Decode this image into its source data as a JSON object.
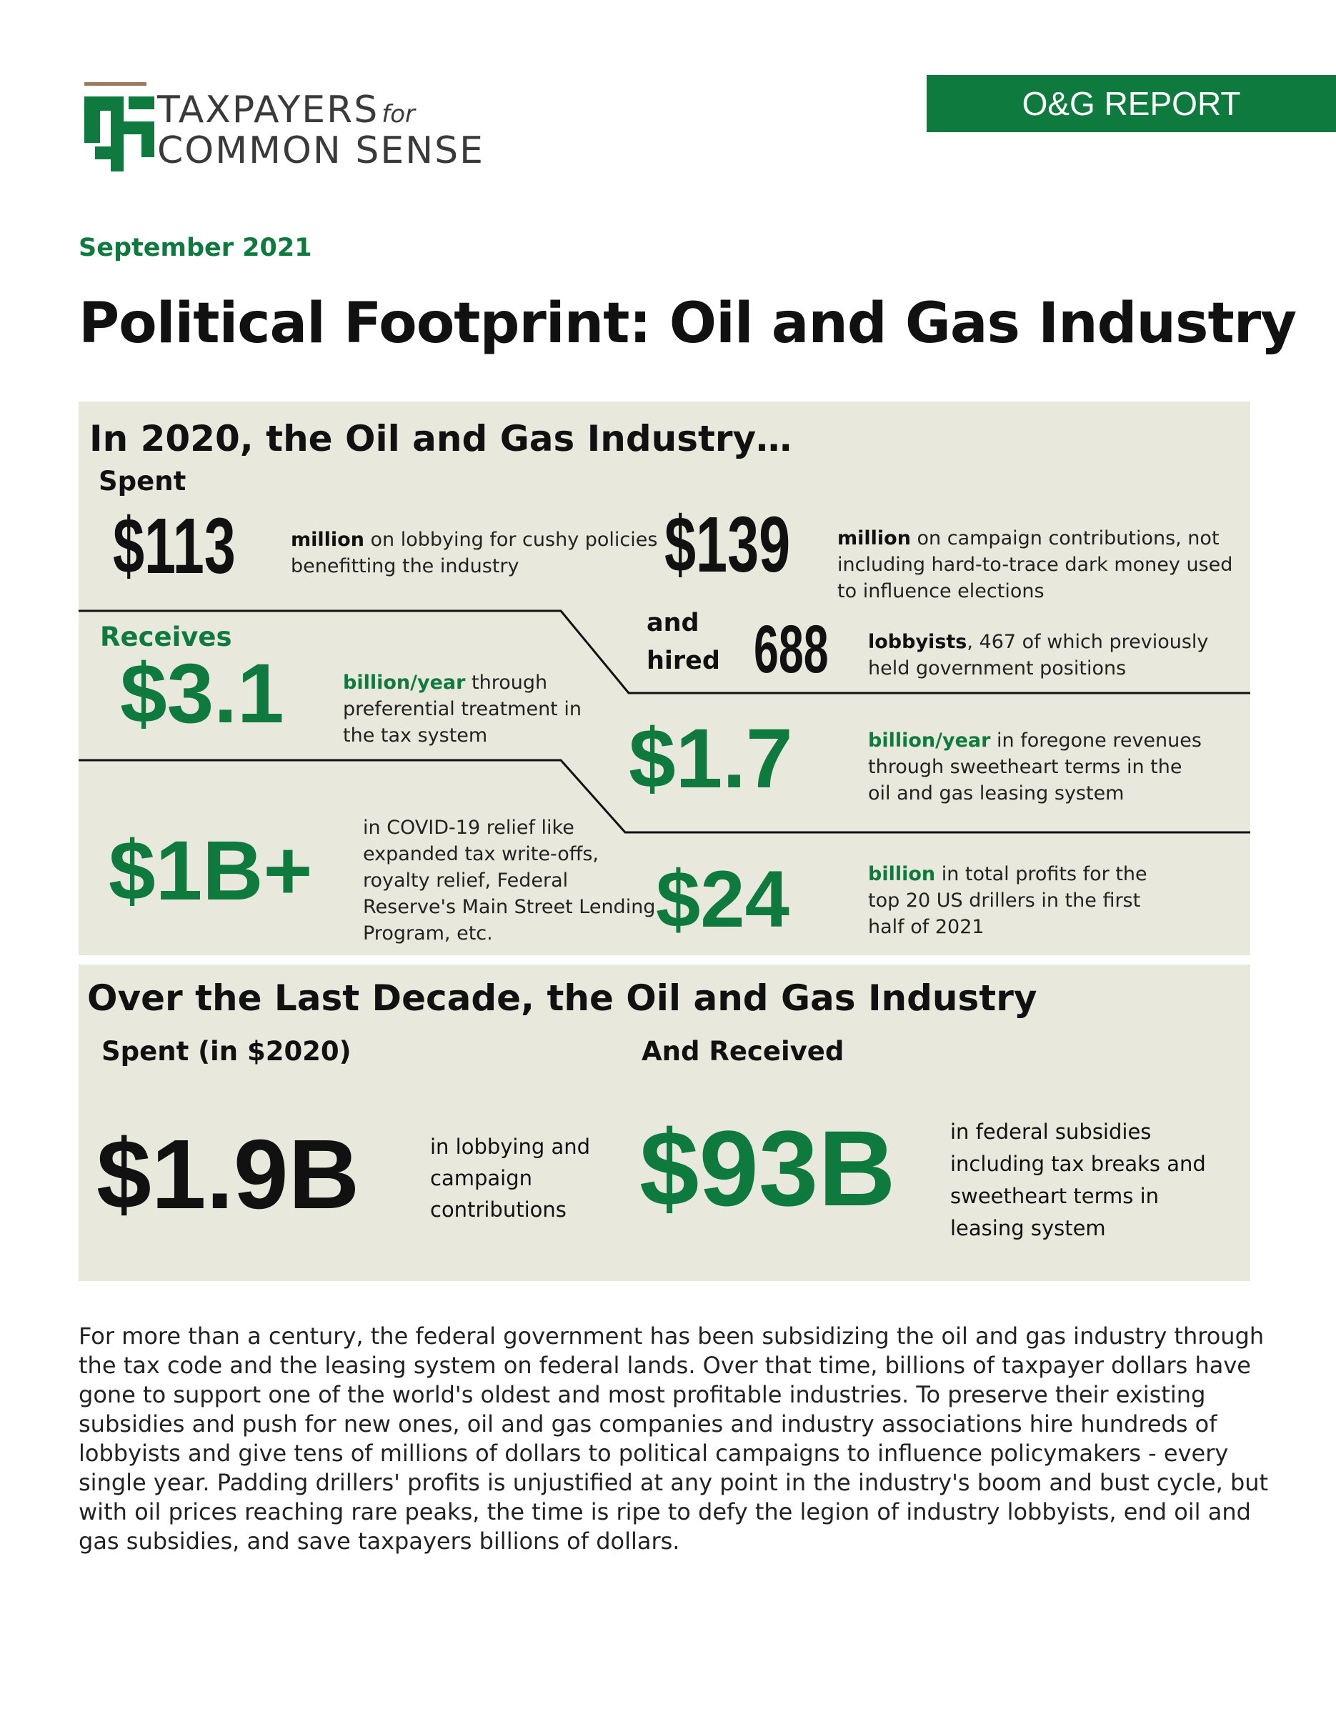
{
  "header": {
    "logo_line1": "TAXPAYERS",
    "logo_for": "for",
    "logo_line2": "COMMON SENSE",
    "badge": "O&G REPORT",
    "date": "September 2021",
    "title": "Political Footprint: Oil and Gas Industry"
  },
  "section2020": {
    "heading": "In 2020, the Oil and Gas Industry…",
    "spent_label": "Spent",
    "receives_label": "Receives",
    "hired_label_1": "and",
    "hired_label_2": "hired",
    "lobbying": {
      "value": "$113",
      "bold": "million",
      "text": " on lobbying for cushy policies benefitting the industry"
    },
    "campaign": {
      "value": "$139",
      "bold": "million",
      "text": " on campaign contributions, not including hard-to-trace dark money used to influence elections"
    },
    "lobbyists": {
      "value": "688",
      "bold": "lobbyists",
      "text": ", 467 of which previously held government positions"
    },
    "tax": {
      "value": "$3.1",
      "bold": "billion/year",
      "text": " through preferential treatment in the tax system"
    },
    "leasing": {
      "value": "$1.7",
      "bold": "billion/year",
      "text": " in foregone revenues through sweetheart terms in the oil and gas leasing system"
    },
    "covid": {
      "value": "$1B+",
      "text": "in COVID-19 relief like expanded tax write-offs, royalty relief, Federal Reserve's Main Street Lending Program, etc."
    },
    "profits": {
      "value": "$24",
      "bold": "billion",
      "text": " in total profits for the top 20 US drillers in the first half of 2021"
    }
  },
  "decade": {
    "heading": "Over the Last Decade, the Oil and Gas Industry",
    "spent_label": "Spent (in $2020)",
    "received_label": "And Received",
    "spent_value": "$1.9B",
    "spent_desc": "in lobbying and campaign contributions",
    "received_value": "$93B",
    "received_desc": "in federal subsidies including tax breaks and sweetheart terms in leasing system"
  },
  "body": "For more than a century, the federal government has been subsidizing the oil and gas industry through the tax code and the leasing system on federal lands. Over that time, billions of taxpayer dollars have gone to support one of the world's oldest and most profitable industries. To preserve their existing subsidies and push for new ones, oil and gas companies and industry associations hire hundreds of lobbyists and give tens of millions of dollars to political campaigns to influence policymakers - every single year. Padding drillers' profits is unjustified at any point in the industry's boom and bust cycle, but with oil prices reaching rare peaks, the time is ripe to defy the legion of industry lobbyists, end oil and gas subsidies, and save taxpayers billions of dollars.",
  "colors": {
    "brand_green": "#0f7a3e",
    "panel": "#e8e8dd",
    "logo_bar": "#9c7a5c"
  }
}
